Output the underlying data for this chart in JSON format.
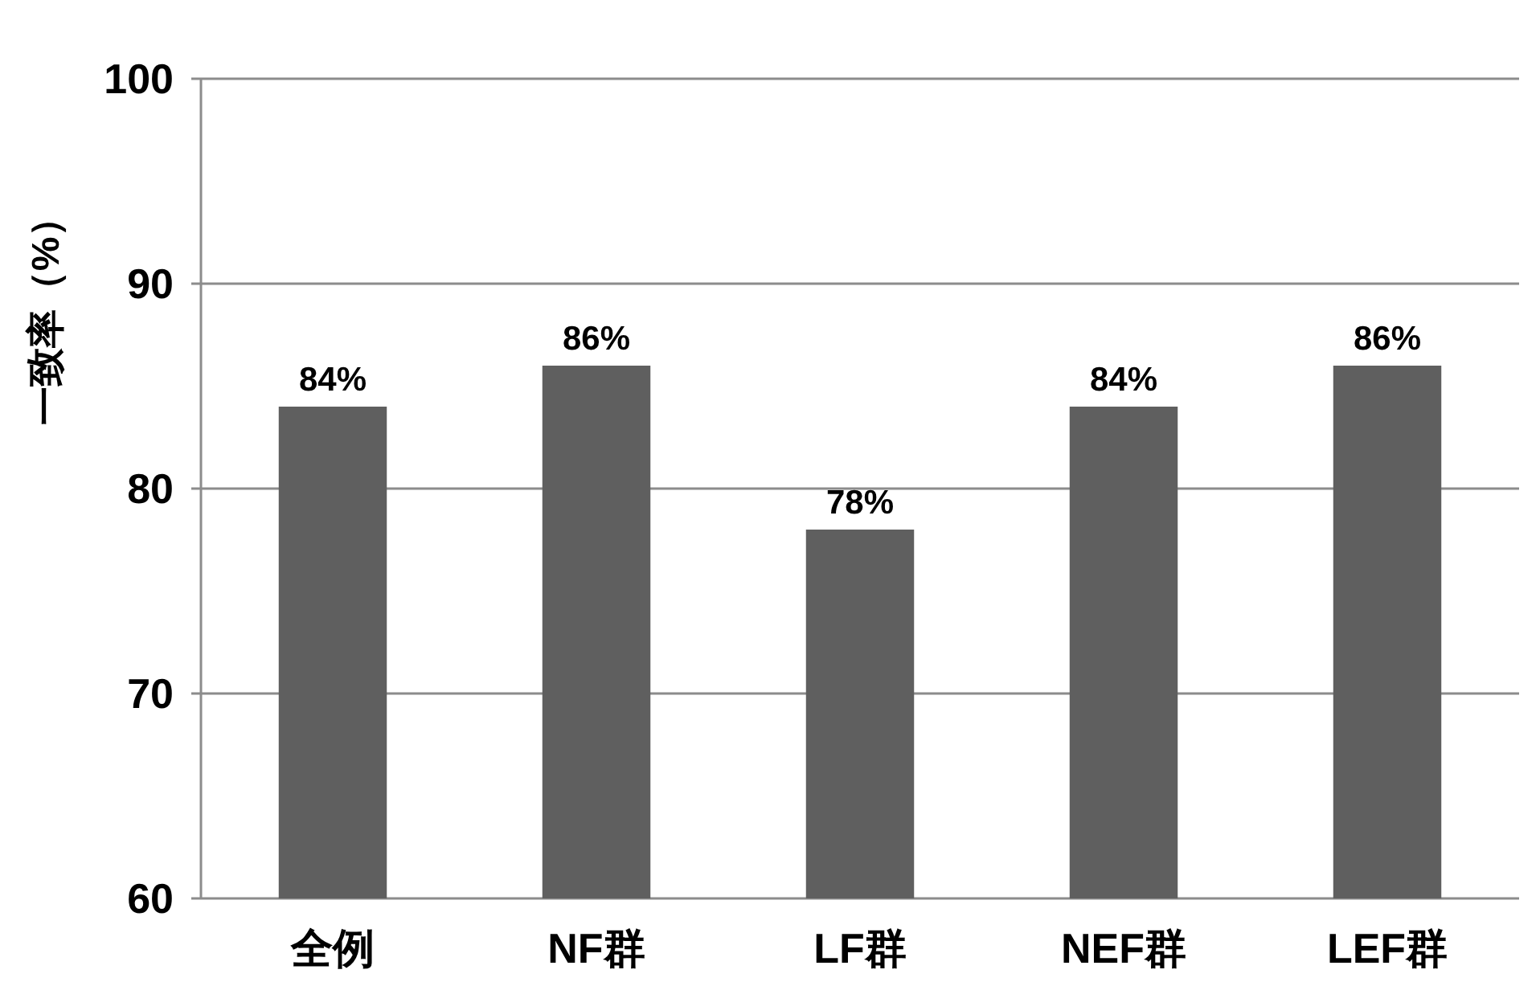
{
  "chart_data": {
    "type": "bar",
    "ylabel": "一致率（%）",
    "categories": [
      "全例",
      "NF群",
      "LF群",
      "NEF群",
      "LEF群"
    ],
    "values": [
      84,
      86,
      78,
      84,
      86
    ],
    "color": "#5f5f5f",
    "value_labels": [
      "84%",
      "86%",
      "78%",
      "84%",
      "86%"
    ],
    "ylim": [
      60,
      100
    ],
    "yticks": [
      60,
      70,
      80,
      90,
      100
    ],
    "grid": "y"
  }
}
